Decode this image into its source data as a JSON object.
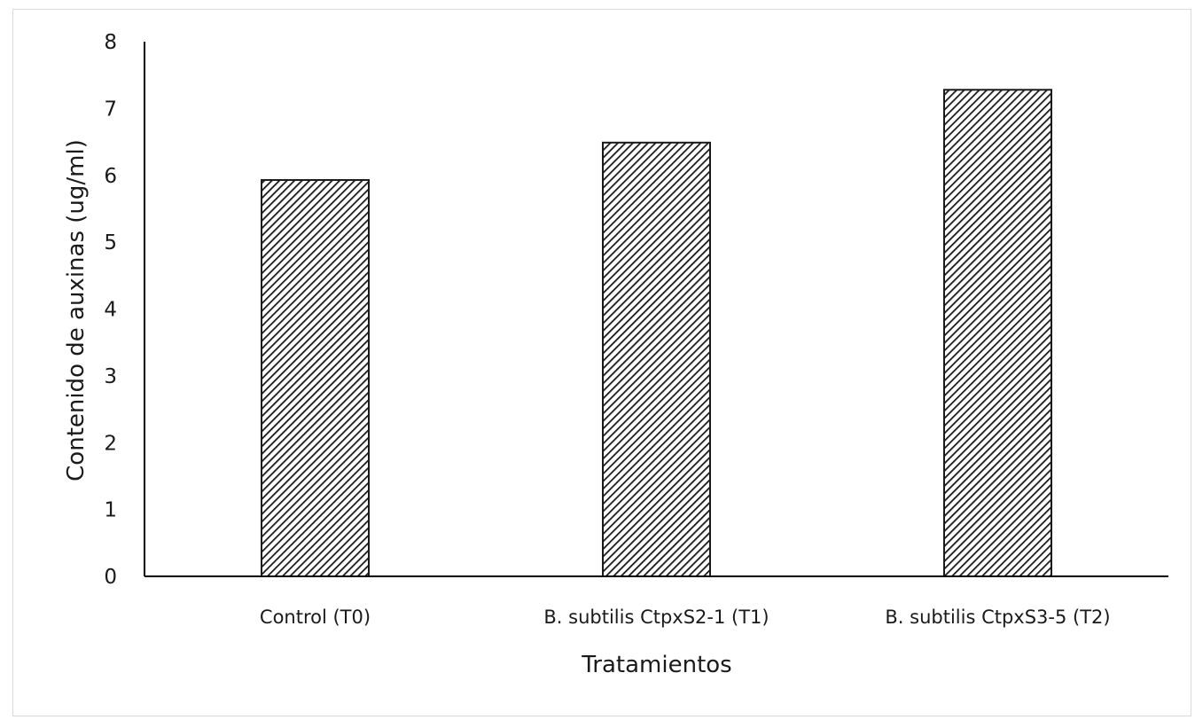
{
  "chart_data": {
    "type": "bar",
    "title": "",
    "xlabel": "Tratamientos",
    "ylabel": "Contenido de auxinas (ug/ml)",
    "categories": [
      "Control (T0)",
      "B. subtilis CtpxS2-1 (T1)",
      "B. subtilis CtpxS3-5 (T2)"
    ],
    "values": [
      5.93,
      6.49,
      7.28
    ],
    "ylim": [
      0,
      8
    ],
    "yticks": [
      "0",
      "1",
      "2",
      "3",
      "4",
      "5",
      "6",
      "7",
      "8"
    ],
    "grid": false,
    "legend": "none",
    "bar_fill": "hatched diagonal",
    "colors": {
      "bar_hatch": "#1a1a1a",
      "bar_background": "#ffffff",
      "axis": "#000000",
      "text": "#1a1a1a",
      "frame": "#d9d9d9"
    }
  }
}
